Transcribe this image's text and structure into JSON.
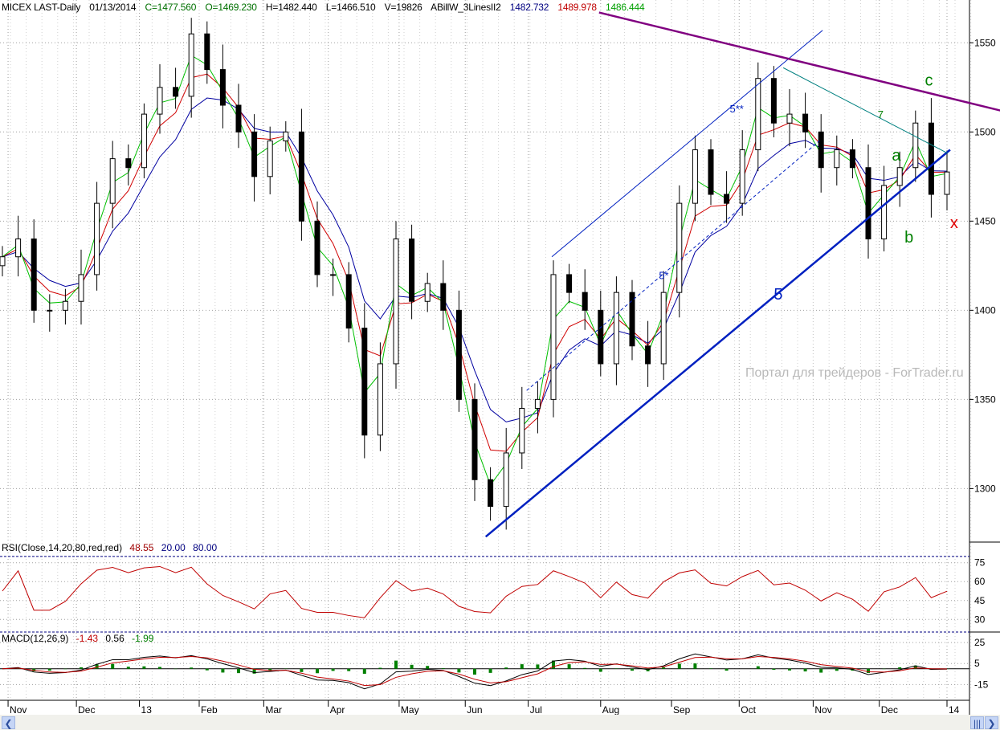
{
  "header": {
    "symbol": "MICEX LAST-Daily",
    "date": "01/13/2014",
    "close": "C=1477.560",
    "open": "O=1469.230",
    "high": "H=1482.440",
    "low": "L=1466.510",
    "volume": "V=19826",
    "indicator": "ABillW_3LinesII2",
    "ma_blue": "1482.732",
    "ma_red": "1489.978",
    "ma_green": "1486.444"
  },
  "rsi_label": {
    "name": "RSI(Close,14,20,80,red,red)",
    "value": "48.55",
    "low": "20.00",
    "high": "80.00"
  },
  "macd_label": {
    "name": "MACD(12,26,9)",
    "v1": "-1.43",
    "v2": "0.56",
    "v3": "-1.99"
  },
  "watermark": "Портал для трейдеров - ForTrader.ru",
  "colors": {
    "up": "#000000",
    "down": "#000000",
    "ma_green": "#00c000",
    "ma_red": "#d00000",
    "ma_blue": "#0000a0",
    "trend": "#0020c0",
    "resistance": "#800080",
    "rsi": "#c00000",
    "grid": "#a0a0a0"
  },
  "chart_data": {
    "type": "candlestick",
    "title": "MICEX LAST-Daily",
    "closes": [
      1430,
      1440,
      1400,
      1400,
      1405,
      1420,
      1460,
      1485,
      1480,
      1510,
      1525,
      1520,
      1555,
      1535,
      1515,
      1500,
      1475,
      1495,
      1500,
      1450,
      1420,
      1420,
      1390,
      1330,
      1370,
      1440,
      1405,
      1415,
      1400,
      1350,
      1305,
      1290,
      1320,
      1345,
      1350,
      1420,
      1410,
      1400,
      1370,
      1410,
      1380,
      1370,
      1410,
      1460,
      1490,
      1465,
      1460,
      1490,
      1530,
      1505,
      1510,
      1500,
      1480,
      1490,
      1480,
      1440,
      1470,
      1480,
      1505,
      1465,
      1477.56
    ],
    "ylim": [
      1270,
      1574
    ],
    "y_ticks": [
      1300,
      1350,
      1400,
      1450,
      1500,
      1550
    ],
    "x_ticks": [
      {
        "label": "Nov",
        "at": 0.36
      },
      {
        "label": "Dec",
        "at": 4.7
      },
      {
        "label": "13",
        "at": 8.7
      },
      {
        "label": "Feb",
        "at": 12.5
      },
      {
        "label": "Mar",
        "at": 16.6
      },
      {
        "label": "Apr",
        "at": 20.7
      },
      {
        "label": "May",
        "at": 25.2
      },
      {
        "label": "Jun",
        "at": 29.4
      },
      {
        "label": "Jul",
        "at": 33.4
      },
      {
        "label": "Aug",
        "at": 38.0
      },
      {
        "label": "Sep",
        "at": 42.5
      },
      {
        "label": "Oct",
        "at": 46.8
      },
      {
        "label": "Nov",
        "at": 51.5
      },
      {
        "label": "Dec",
        "at": 55.7
      },
      {
        "label": "14",
        "at": 60.0
      }
    ],
    "trendlines": [
      {
        "name": "support-5",
        "from": [
          30.7,
          1273
        ],
        "to": [
          60.2,
          1490
        ],
        "color": "#0020c0",
        "style": "thick"
      },
      {
        "name": "channel-5-star-star",
        "from": [
          34.9,
          1430
        ],
        "to": [
          52.1,
          1557
        ],
        "color": "#0020c0",
        "style": "thin"
      },
      {
        "name": "channel-5-star",
        "from": [
          33.3,
          1355
        ],
        "to": [
          51.9,
          1495
        ],
        "color": "#0020c0",
        "style": "dashed"
      },
      {
        "name": "resistance",
        "from": [
          37.9,
          1567
        ],
        "to": [
          63.4,
          1512
        ],
        "color": "#800080",
        "style": "thick"
      },
      {
        "name": "line-7",
        "from": [
          49.6,
          1536
        ],
        "to": [
          60.05,
          1488
        ],
        "color": "#008080",
        "style": "thin"
      }
    ],
    "annotations": [
      {
        "text": "5",
        "at": [
          49.0,
          1406
        ],
        "color": "#0020c0",
        "size": "large"
      },
      {
        "text": "5*",
        "at": [
          41.7,
          1417.6
        ],
        "color": "#0020c0",
        "size": "small"
      },
      {
        "text": "5**",
        "at": [
          46.2,
          1511
        ],
        "color": "#0020c0",
        "size": "small"
      },
      {
        "text": "7",
        "at": [
          55.6,
          1507.7
        ],
        "color": "#008000",
        "size": "small"
      },
      {
        "text": "a",
        "at": [
          56.5,
          1484
        ],
        "color": "#008000",
        "size": "large"
      },
      {
        "text": "b",
        "at": [
          57.3,
          1438
        ],
        "color": "#008000",
        "size": "large"
      },
      {
        "text": "c",
        "at": [
          58.6,
          1526
        ],
        "color": "#008000",
        "size": "large"
      },
      {
        "text": "x",
        "at": [
          60.2,
          1446
        ],
        "color": "#e00000",
        "size": "large"
      }
    ],
    "rsi": {
      "ylim": [
        20,
        85
      ],
      "levels": [
        20,
        80
      ],
      "y_ticks": [
        30,
        45,
        60,
        75
      ]
    },
    "macd": {
      "ylim": [
        -30,
        35
      ],
      "y_ticks": [
        -15,
        5,
        25
      ]
    }
  }
}
